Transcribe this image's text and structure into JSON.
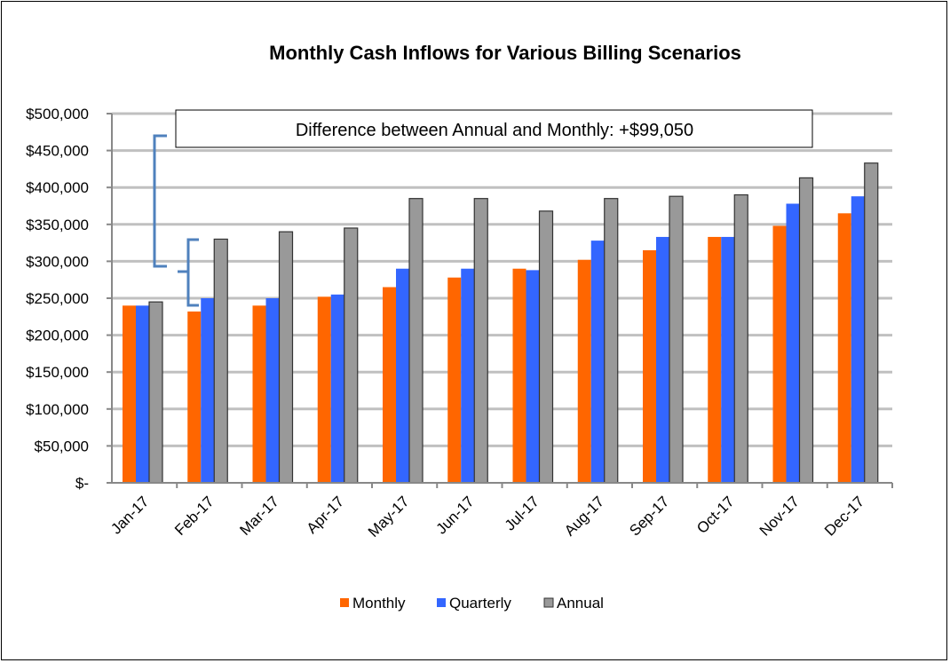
{
  "chart_data": {
    "type": "bar",
    "title": "Monthly Cash Inflows for Various Billing Scenarios",
    "xlabel": "",
    "ylabel": "",
    "ylim": [
      0,
      500000
    ],
    "ytick_step": 50000,
    "ytick_labels": [
      "$-",
      "$50,000",
      "$100,000",
      "$150,000",
      "$200,000",
      "$250,000",
      "$300,000",
      "$350,000",
      "$400,000",
      "$450,000",
      "$500,000"
    ],
    "grid": true,
    "legend_position": "bottom",
    "categories": [
      "Jan-17",
      "Feb-17",
      "Mar-17",
      "Apr-17",
      "May-17",
      "Jun-17",
      "Jul-17",
      "Aug-17",
      "Sep-17",
      "Oct-17",
      "Nov-17",
      "Dec-17"
    ],
    "series": [
      {
        "name": "Monthly",
        "color": "#ff6600",
        "values": [
          240000,
          232000,
          240000,
          252000,
          265000,
          278000,
          290000,
          302000,
          315000,
          333000,
          348000,
          365000
        ]
      },
      {
        "name": "Quarterly",
        "color": "#3366ff",
        "values": [
          240000,
          250000,
          250000,
          255000,
          290000,
          290000,
          288000,
          328000,
          333000,
          333000,
          378000,
          388000
        ]
      },
      {
        "name": "Annual",
        "color": "#999999",
        "values": [
          245000,
          330000,
          340000,
          345000,
          385000,
          385000,
          368000,
          385000,
          388000,
          390000,
          413000,
          433000
        ]
      }
    ],
    "annotation": {
      "text": "Difference between Annual and Monthly: +$99,050",
      "bracket_color": "#4f81bd"
    }
  }
}
